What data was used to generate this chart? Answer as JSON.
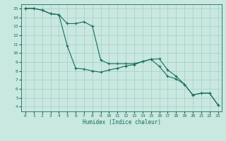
{
  "xlabel": "Humidex (Indice chaleur)",
  "xlim": [
    -0.5,
    23.5
  ],
  "ylim": [
    3.5,
    15.5
  ],
  "xticks": [
    0,
    1,
    2,
    3,
    4,
    5,
    6,
    7,
    8,
    9,
    10,
    11,
    12,
    13,
    14,
    15,
    16,
    17,
    18,
    19,
    20,
    21,
    22,
    23
  ],
  "yticks": [
    4,
    5,
    6,
    7,
    8,
    9,
    10,
    11,
    12,
    13,
    14,
    15
  ],
  "background_color": "#c8e8e0",
  "grid_color": "#a8ccc8",
  "line_color": "#1a6b5a",
  "line1_x": [
    0,
    1,
    2,
    3,
    4,
    5,
    6,
    7,
    8,
    9,
    10,
    11,
    12,
    13,
    14,
    15,
    16,
    17,
    18,
    19,
    20,
    21,
    22,
    23
  ],
  "line1_y": [
    15,
    15,
    14.8,
    14.4,
    14.3,
    10.8,
    8.3,
    8.2,
    8.0,
    7.85,
    8.1,
    8.3,
    8.55,
    8.7,
    9.05,
    9.3,
    9.35,
    8.1,
    7.4,
    6.5,
    5.3,
    5.5,
    5.5,
    4.2
  ],
  "line2_x": [
    0,
    1,
    2,
    3,
    4,
    5,
    6,
    7,
    8,
    9,
    10,
    11,
    12,
    13,
    14,
    15,
    16,
    17,
    18,
    19,
    20,
    21,
    22,
    23
  ],
  "line2_y": [
    15,
    15,
    14.8,
    14.4,
    14.3,
    13.3,
    13.3,
    13.5,
    13.0,
    9.2,
    8.8,
    8.8,
    8.8,
    8.8,
    9.05,
    9.3,
    8.5,
    7.4,
    7.1,
    6.5,
    5.3,
    5.5,
    5.5,
    4.2
  ]
}
